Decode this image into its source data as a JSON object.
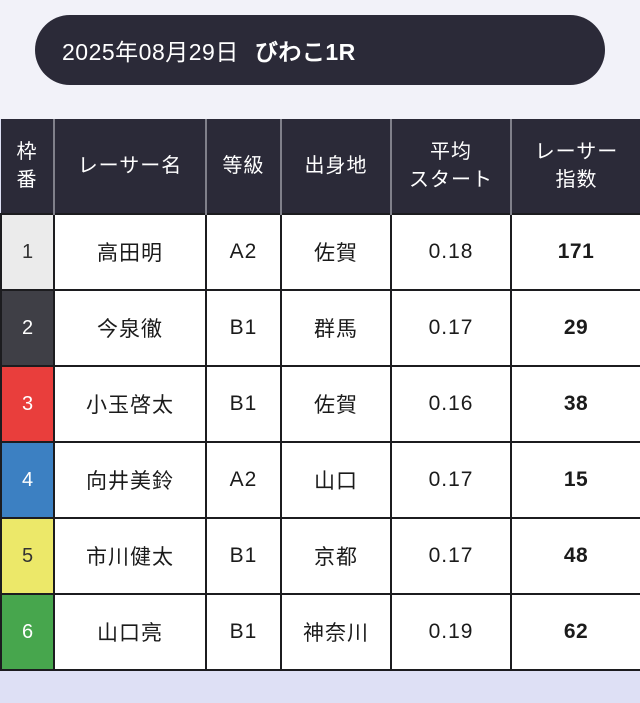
{
  "page": {
    "bg_top": "#f2f2f9",
    "bg_bottom": "#dee0f5"
  },
  "title_bar": {
    "date": "2025年08月29日",
    "race": "びわこ1R",
    "bg": "#2b2a38",
    "text_color": "#ffffff"
  },
  "table": {
    "header_bg": "#2b2a38",
    "header_text_color": "#ffffff",
    "border_color": "#1c1c1f",
    "header_divider_color": "#80808a",
    "columns": [
      {
        "id": "waku",
        "label": "枠\n番"
      },
      {
        "id": "name",
        "label": "レーサー名"
      },
      {
        "id": "grade",
        "label": "等級"
      },
      {
        "id": "origin",
        "label": "出身地"
      },
      {
        "id": "avg_start",
        "label": "平均\nスタート"
      },
      {
        "id": "index",
        "label": "レーサー\n指数"
      }
    ],
    "rows": [
      {
        "waku": "1",
        "name": "高田明",
        "grade": "A2",
        "origin": "佐賀",
        "avg_start": "0.18",
        "index": "171",
        "waku_bg": "#ebebeb",
        "waku_fg": "#333333"
      },
      {
        "waku": "2",
        "name": "今泉徹",
        "grade": "B1",
        "origin": "群馬",
        "avg_start": "0.17",
        "index": "29",
        "waku_bg": "#3f3f46",
        "waku_fg": "#ffffff"
      },
      {
        "waku": "3",
        "name": "小玉啓太",
        "grade": "B1",
        "origin": "佐賀",
        "avg_start": "0.16",
        "index": "38",
        "waku_bg": "#e93e3c",
        "waku_fg": "#ffffff"
      },
      {
        "waku": "4",
        "name": "向井美鈴",
        "grade": "A2",
        "origin": "山口",
        "avg_start": "0.17",
        "index": "15",
        "waku_bg": "#3c80c2",
        "waku_fg": "#ffffff"
      },
      {
        "waku": "5",
        "name": "市川健太",
        "grade": "B1",
        "origin": "京都",
        "avg_start": "0.17",
        "index": "48",
        "waku_bg": "#ece869",
        "waku_fg": "#333333"
      },
      {
        "waku": "6",
        "name": "山口亮",
        "grade": "B1",
        "origin": "神奈川",
        "avg_start": "0.19",
        "index": "62",
        "waku_bg": "#47a64d",
        "waku_fg": "#ffffff"
      }
    ]
  }
}
